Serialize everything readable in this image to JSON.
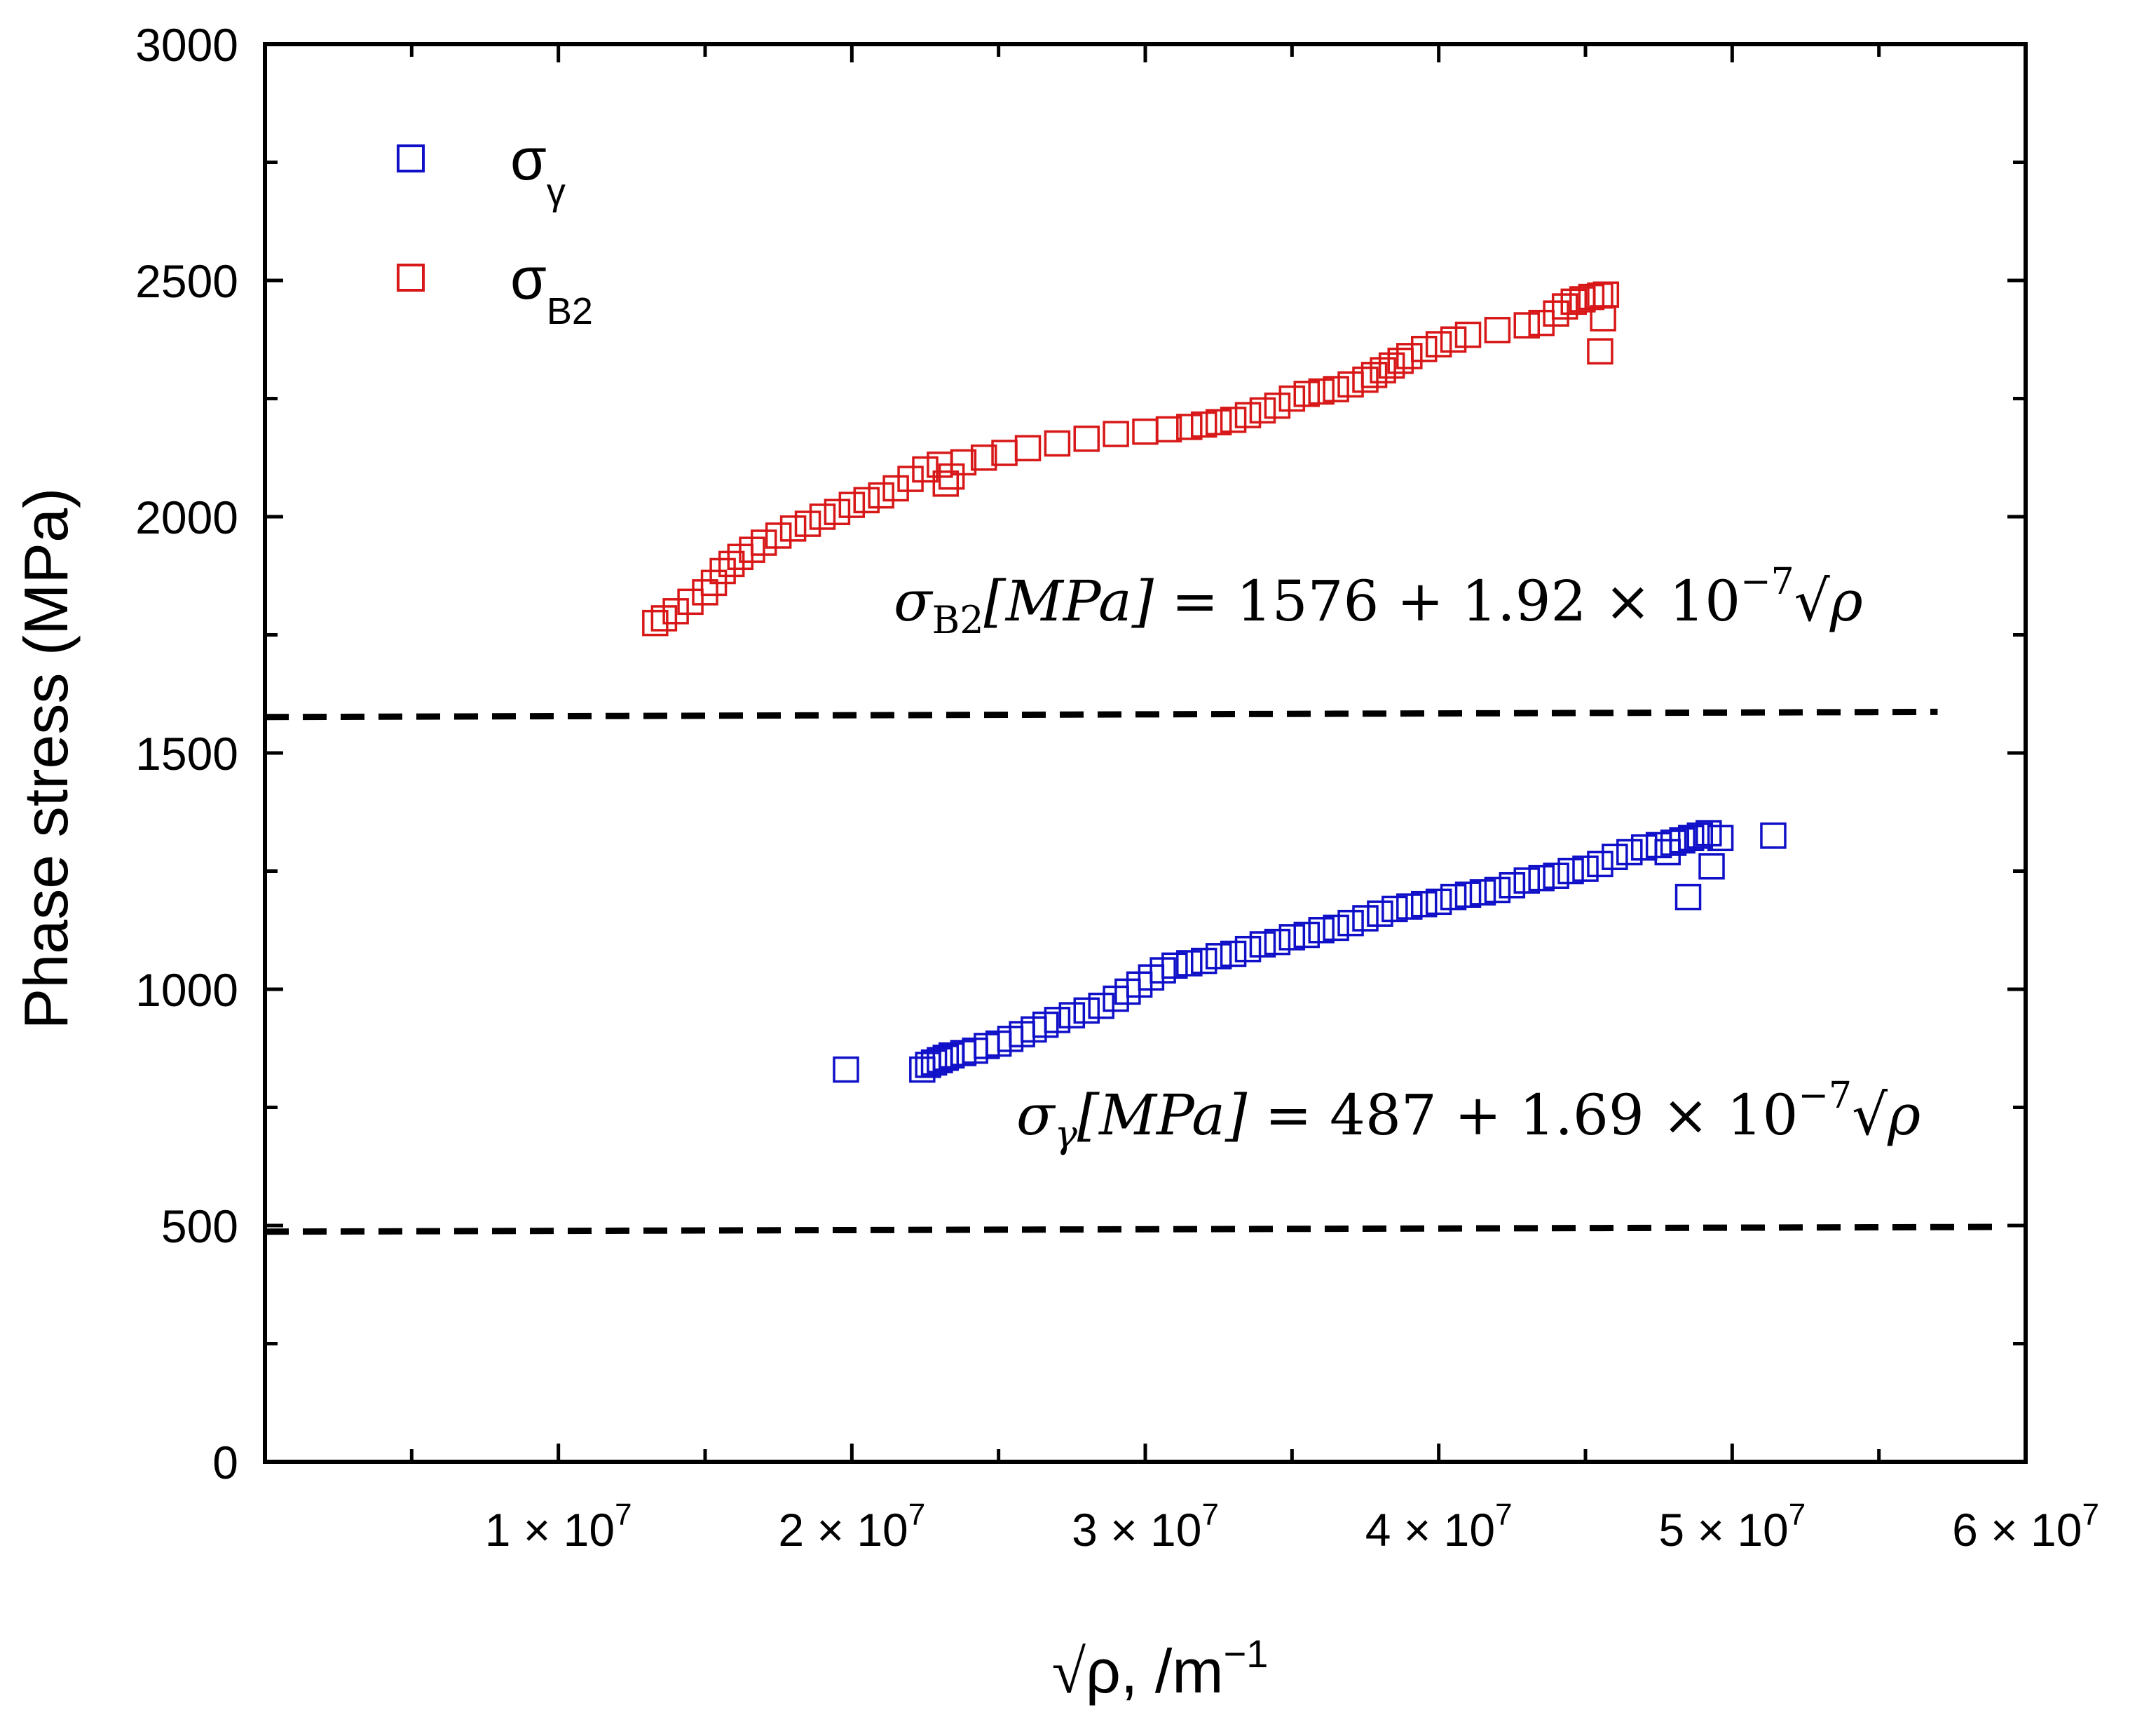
{
  "chart_data": {
    "type": "scatter",
    "title": "",
    "xlabel_root": "√",
    "xlabel_var": "ρ, /m",
    "xlabel_exp": "−1",
    "ylabel": "Phase stress (MPa)",
    "xlim": [
      0,
      60000000
    ],
    "ylim": [
      0,
      3000
    ],
    "grid": false,
    "legend_position": "top-left",
    "y_ticks": [
      {
        "value": 0,
        "label": "0"
      },
      {
        "value": 500,
        "label": "500"
      },
      {
        "value": 1000,
        "label": "1000"
      },
      {
        "value": 1500,
        "label": "1500"
      },
      {
        "value": 2000,
        "label": "2000"
      },
      {
        "value": 2500,
        "label": "2500"
      },
      {
        "value": 3000,
        "label": "3000"
      }
    ],
    "x_ticks": [
      {
        "value": 10000000,
        "mant": "1",
        "times": "×",
        "base": "10",
        "exp": "7"
      },
      {
        "value": 20000000,
        "mant": "2",
        "times": "×",
        "base": "10",
        "exp": "7"
      },
      {
        "value": 30000000,
        "mant": "3",
        "times": "×",
        "base": "10",
        "exp": "7"
      },
      {
        "value": 40000000,
        "mant": "4",
        "times": "×",
        "base": "10",
        "exp": "7"
      },
      {
        "value": 50000000,
        "mant": "5",
        "times": "×",
        "base": "10",
        "exp": "7"
      },
      {
        "value": 60000000,
        "mant": "6",
        "times": "×",
        "base": "10",
        "exp": "7"
      }
    ],
    "series": [
      {
        "name": "σγ",
        "legend_symbol": "σ",
        "legend_sub": "γ",
        "color": "#1010c8",
        "marker": "square-open",
        "fit": {
          "intercept": 487,
          "slope": 1.69e-07,
          "x_range": [
            0,
            59000000
          ]
        },
        "equation": {
          "sigma": "σ",
          "sub": "γ",
          "lhs": "[MPa]",
          "rhs": " = 487 + 1.69 × 10",
          "exp": "−7",
          "tail": "√ρ"
        },
        "x": [
          19800000,
          22400000,
          22600000,
          22800000,
          23000000,
          23200000,
          23400000,
          23800000,
          24200000,
          24600000,
          25000000,
          25400000,
          25800000,
          26200000,
          26600000,
          27000000,
          27500000,
          28000000,
          28500000,
          29000000,
          29400000,
          29800000,
          30200000,
          30600000,
          31000000,
          31500000,
          32000000,
          32500000,
          33000000,
          33500000,
          34000000,
          34500000,
          35000000,
          35500000,
          36000000,
          36500000,
          37000000,
          37500000,
          38000000,
          38500000,
          39000000,
          39500000,
          40000000,
          40500000,
          41000000,
          41500000,
          42000000,
          42500000,
          43000000,
          43500000,
          44000000,
          44500000,
          45000000,
          45500000,
          46000000,
          46500000,
          47000000,
          47500000,
          48000000,
          48300000,
          48600000,
          48900000,
          49200000,
          49600000,
          51400000,
          48500000,
          49300000,
          47800000
        ],
        "y": [
          830,
          830,
          840,
          845,
          850,
          855,
          860,
          865,
          870,
          880,
          885,
          895,
          905,
          915,
          925,
          935,
          945,
          955,
          965,
          980,
          995,
          1010,
          1025,
          1040,
          1050,
          1055,
          1060,
          1070,
          1075,
          1085,
          1095,
          1100,
          1110,
          1115,
          1125,
          1130,
          1140,
          1150,
          1160,
          1170,
          1175,
          1180,
          1185,
          1195,
          1200,
          1205,
          1210,
          1220,
          1230,
          1235,
          1240,
          1250,
          1255,
          1265,
          1280,
          1290,
          1300,
          1305,
          1310,
          1315,
          1320,
          1325,
          1330,
          1320,
          1325,
          1195,
          1260,
          1290
        ]
      },
      {
        "name": "σB2",
        "legend_symbol": "σ",
        "legend_sub": "B2",
        "color": "#d81818",
        "marker": "square-open",
        "fit": {
          "intercept": 1576,
          "slope": 1.92e-07,
          "x_range": [
            0,
            57000000
          ]
        },
        "equation": {
          "sigma": "σ",
          "sub": "B2",
          "lhs": "[MPa]",
          "rhs": " = 1576 + 1.92 × 10",
          "exp": "−7",
          "tail": "√ρ"
        },
        "x": [
          13300000,
          13600000,
          14000000,
          14500000,
          15000000,
          15300000,
          15600000,
          15900000,
          16200000,
          16600000,
          17000000,
          17500000,
          18000000,
          18500000,
          19000000,
          19500000,
          20000000,
          20500000,
          21000000,
          21500000,
          22000000,
          22500000,
          23000000,
          23200000,
          23400000,
          23800000,
          24500000,
          25200000,
          26000000,
          27000000,
          28000000,
          29000000,
          30000000,
          30800000,
          31500000,
          32000000,
          32500000,
          33000000,
          33500000,
          34000000,
          34500000,
          35000000,
          35500000,
          36000000,
          36500000,
          37000000,
          37500000,
          37800000,
          38100000,
          38400000,
          38700000,
          39000000,
          39500000,
          40000000,
          40500000,
          41000000,
          42000000,
          43000000,
          43500000,
          44000000,
          44300000,
          44600000,
          44900000,
          45200000,
          45500000,
          45700000,
          45500000,
          45600000
        ],
        "y": [
          1775,
          1785,
          1800,
          1820,
          1840,
          1860,
          1885,
          1900,
          1915,
          1930,
          1945,
          1960,
          1975,
          1985,
          2000,
          2010,
          2025,
          2035,
          2045,
          2060,
          2080,
          2100,
          2110,
          2070,
          2085,
          2115,
          2125,
          2135,
          2145,
          2155,
          2165,
          2175,
          2180,
          2185,
          2190,
          2195,
          2200,
          2205,
          2215,
          2225,
          2235,
          2250,
          2260,
          2265,
          2270,
          2280,
          2290,
          2300,
          2310,
          2320,
          2330,
          2340,
          2355,
          2365,
          2375,
          2385,
          2395,
          2405,
          2410,
          2430,
          2445,
          2455,
          2460,
          2465,
          2468,
          2470,
          2350,
          2420
        ]
      }
    ]
  }
}
